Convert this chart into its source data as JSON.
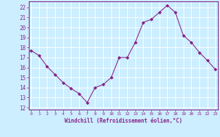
{
  "x": [
    0,
    1,
    2,
    3,
    4,
    5,
    6,
    7,
    8,
    9,
    10,
    11,
    12,
    13,
    14,
    15,
    16,
    17,
    18,
    19,
    20,
    21,
    22,
    23
  ],
  "y": [
    17.7,
    17.2,
    16.1,
    15.3,
    14.5,
    13.9,
    13.4,
    12.5,
    14.0,
    14.3,
    15.0,
    17.0,
    17.0,
    18.5,
    20.5,
    20.8,
    21.5,
    22.2,
    21.5,
    19.2,
    18.5,
    17.5,
    16.7,
    15.8
  ],
  "line_color": "#882288",
  "marker": "D",
  "marker_size": 2.2,
  "background_color": "#cceeff",
  "grid_color": "#ffffff",
  "xlabel": "Windchill (Refroidissement éolien,°C)",
  "ylim": [
    11.8,
    22.6
  ],
  "yticks": [
    12,
    13,
    14,
    15,
    16,
    17,
    18,
    19,
    20,
    21,
    22
  ],
  "xticks": [
    0,
    1,
    2,
    3,
    4,
    5,
    6,
    7,
    8,
    9,
    10,
    11,
    12,
    13,
    14,
    15,
    16,
    17,
    18,
    19,
    20,
    21,
    22,
    23
  ],
  "tick_color": "#882288",
  "label_color": "#882288",
  "spine_color": "#882288",
  "xlim": [
    -0.3,
    23.3
  ]
}
